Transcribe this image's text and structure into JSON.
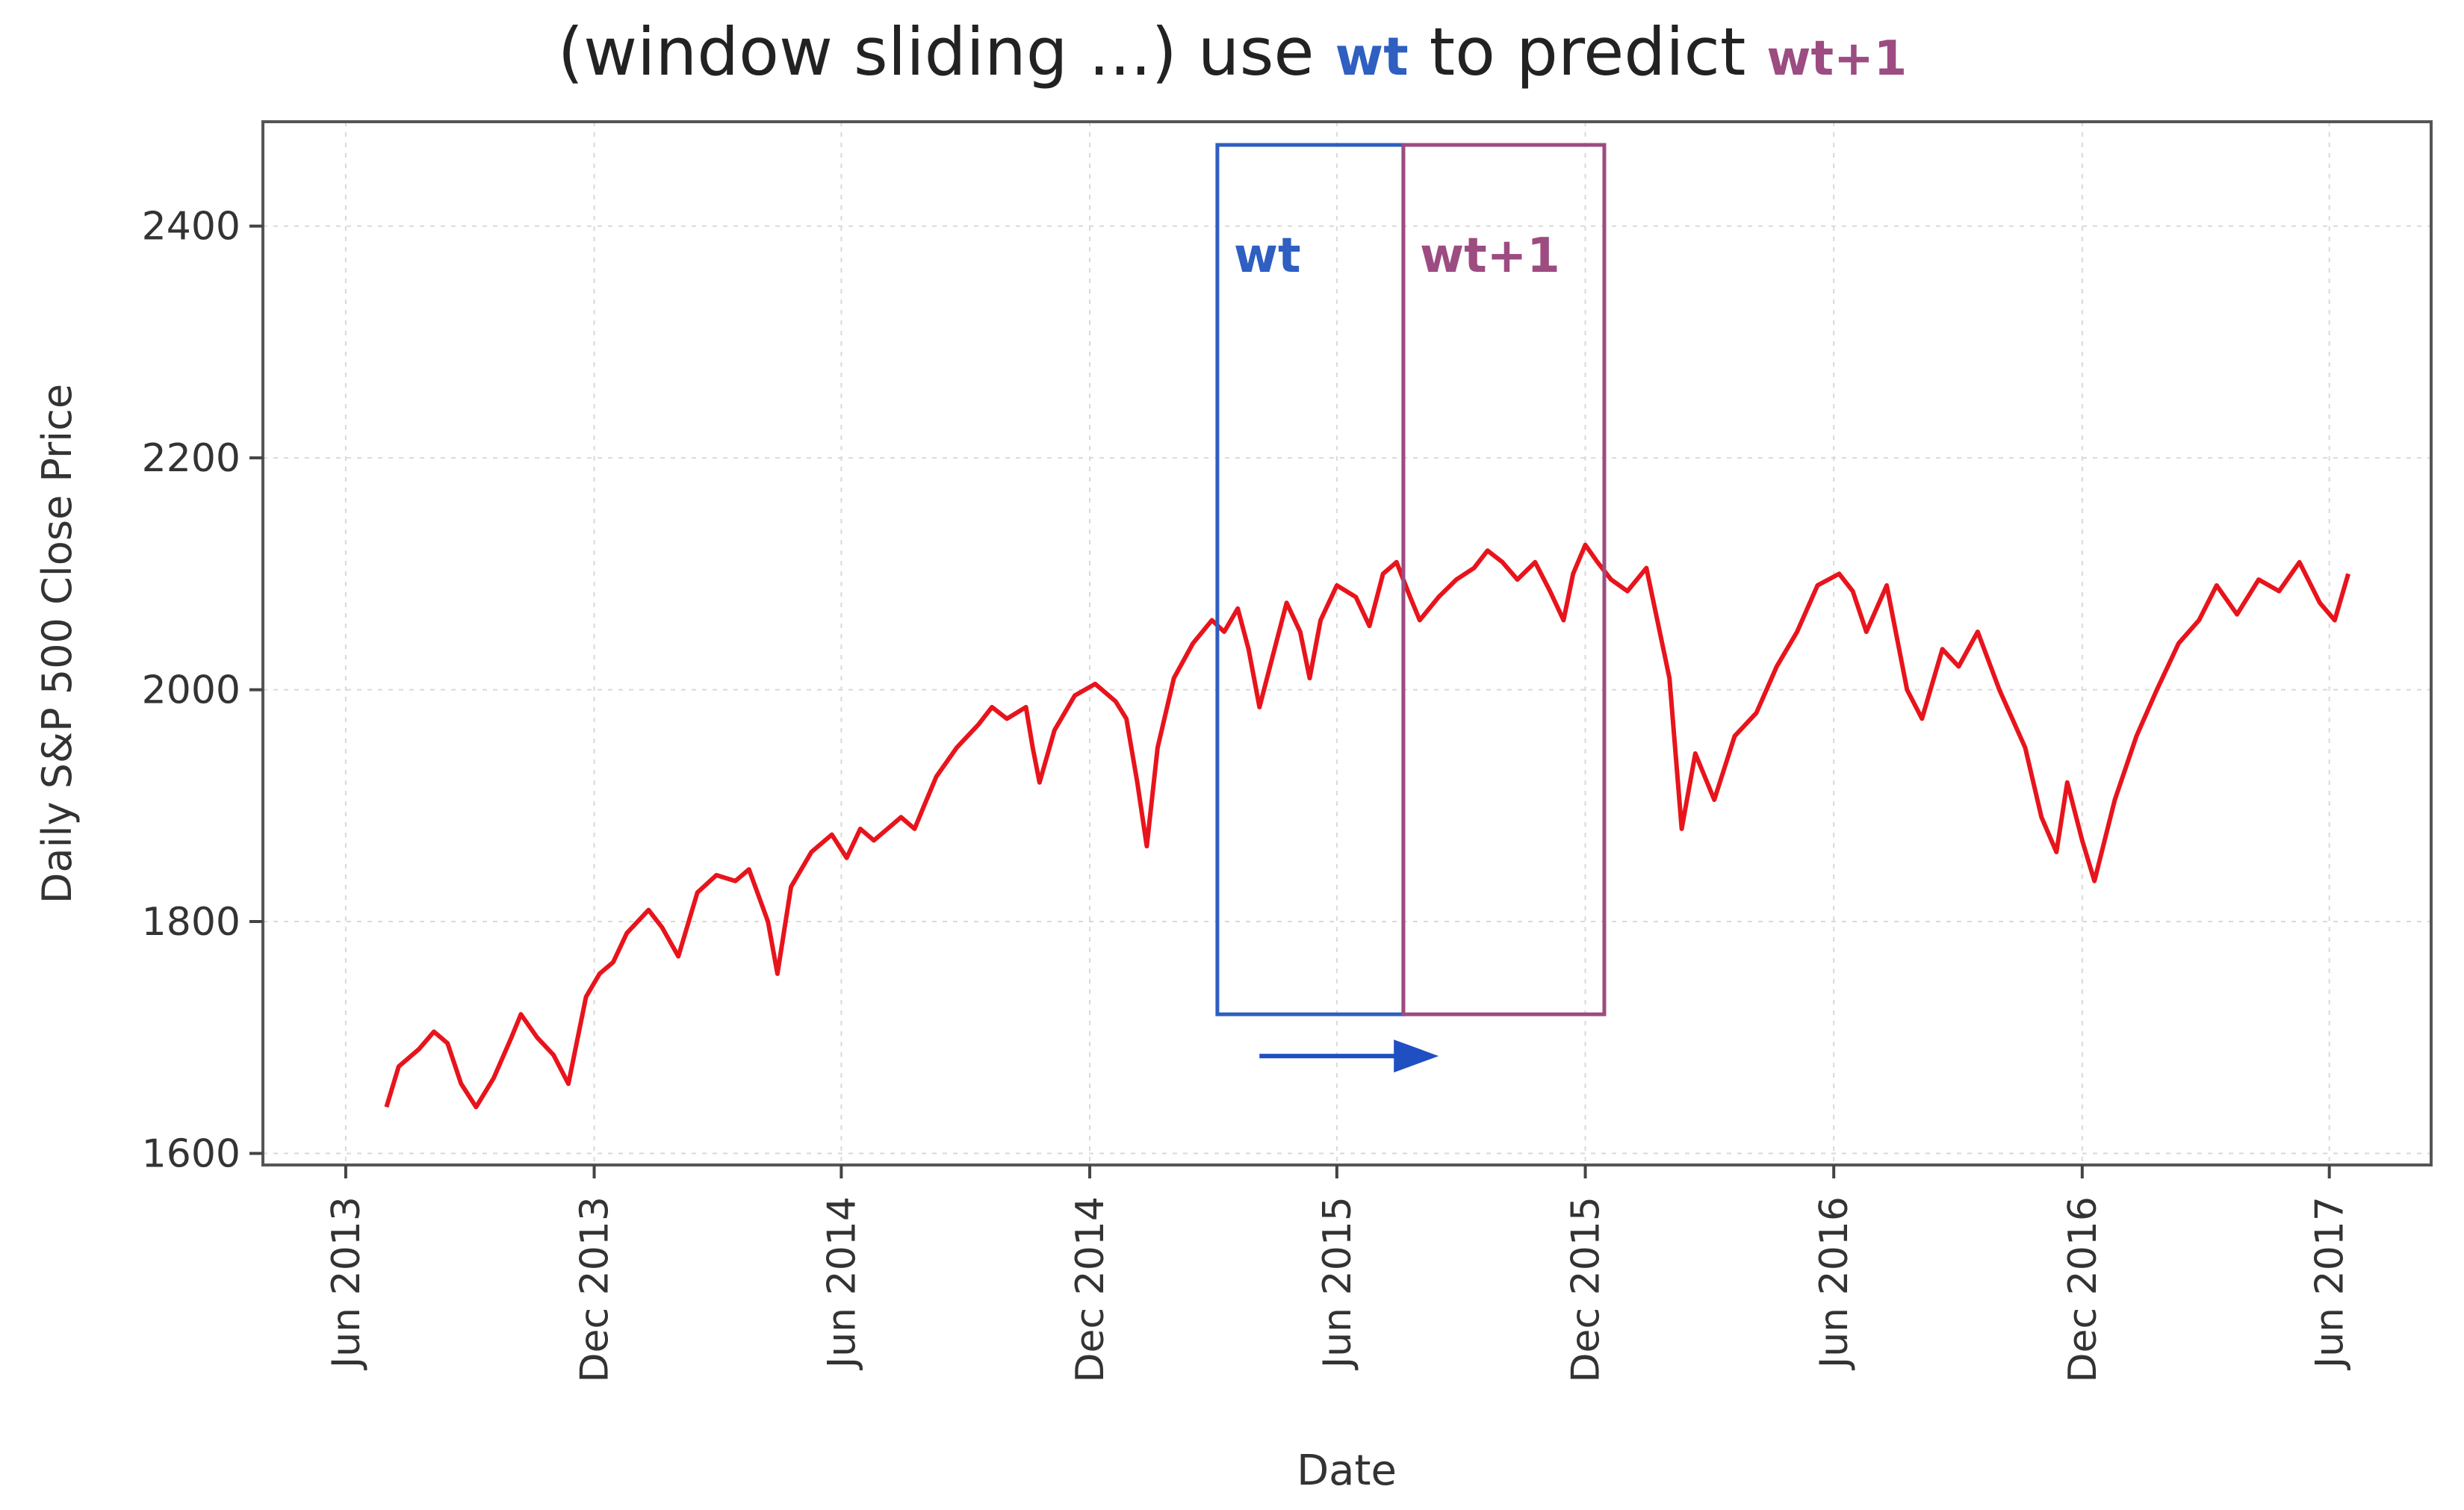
{
  "chart_data": {
    "type": "line",
    "title": {
      "prefix": "(window sliding ...) use ",
      "w_t": "wt",
      "middle": " to predict ",
      "w_t1": "wt+1"
    },
    "xlabel": "Date",
    "ylabel": "Daily S&P 500 Close Price",
    "x_ticks": [
      "Jun 2013",
      "Dec 2013",
      "Jun 2014",
      "Dec 2014",
      "Jun 2015",
      "Dec 2015",
      "Jun 2016",
      "Dec 2016",
      "Jun 2017"
    ],
    "y_ticks": [
      1600,
      1800,
      2000,
      2200,
      2400
    ],
    "ylim": [
      1590,
      2490
    ],
    "xlim": [
      "2013-04-01",
      "2017-08-15"
    ],
    "grid": true,
    "series": [
      {
        "color": "#e8141c",
        "points": [
          [
            "2013-07-01",
            1640
          ],
          [
            "2013-07-10",
            1675
          ],
          [
            "2013-07-25",
            1690
          ],
          [
            "2013-08-05",
            1705
          ],
          [
            "2013-08-15",
            1695
          ],
          [
            "2013-08-25",
            1660
          ],
          [
            "2013-09-05",
            1640
          ],
          [
            "2013-09-18",
            1665
          ],
          [
            "2013-10-01",
            1700
          ],
          [
            "2013-10-08",
            1720
          ],
          [
            "2013-10-20",
            1700
          ],
          [
            "2013-11-01",
            1685
          ],
          [
            "2013-11-12",
            1660
          ],
          [
            "2013-11-25",
            1735
          ],
          [
            "2013-12-05",
            1755
          ],
          [
            "2013-12-15",
            1765
          ],
          [
            "2013-12-25",
            1790
          ],
          [
            "2014-01-10",
            1810
          ],
          [
            "2014-01-20",
            1795
          ],
          [
            "2014-02-01",
            1770
          ],
          [
            "2014-02-15",
            1825
          ],
          [
            "2014-03-01",
            1840
          ],
          [
            "2014-03-15",
            1835
          ],
          [
            "2014-03-25",
            1845
          ],
          [
            "2014-04-08",
            1800
          ],
          [
            "2014-04-15",
            1755
          ],
          [
            "2014-04-25",
            1830
          ],
          [
            "2014-05-10",
            1860
          ],
          [
            "2014-05-25",
            1875
          ],
          [
            "2014-06-05",
            1855
          ],
          [
            "2014-06-15",
            1880
          ],
          [
            "2014-06-25",
            1870
          ],
          [
            "2014-07-05",
            1880
          ],
          [
            "2014-07-15",
            1890
          ],
          [
            "2014-07-25",
            1880
          ],
          [
            "2014-08-01",
            1900
          ],
          [
            "2014-08-10",
            1925
          ],
          [
            "2014-08-25",
            1950
          ],
          [
            "2014-09-10",
            1970
          ],
          [
            "2014-09-20",
            1985
          ],
          [
            "2014-10-01",
            1975
          ],
          [
            "2014-10-15",
            1985
          ],
          [
            "2014-10-20",
            1950
          ],
          [
            "2014-10-25",
            1920
          ],
          [
            "2014-11-05",
            1965
          ],
          [
            "2014-11-20",
            1995
          ],
          [
            "2014-12-05",
            2005
          ],
          [
            "2014-12-20",
            1990
          ],
          [
            "2014-12-28",
            1975
          ],
          [
            "2015-01-05",
            1920
          ],
          [
            "2015-01-12",
            1865
          ],
          [
            "2015-01-20",
            1950
          ],
          [
            "2015-02-01",
            2010
          ],
          [
            "2015-02-15",
            2040
          ],
          [
            "2015-03-01",
            2060
          ],
          [
            "2015-03-10",
            2050
          ],
          [
            "2015-03-20",
            2070
          ],
          [
            "2015-03-28",
            2035
          ],
          [
            "2015-04-05",
            1985
          ],
          [
            "2015-04-15",
            2030
          ],
          [
            "2015-04-25",
            2075
          ],
          [
            "2015-05-05",
            2050
          ],
          [
            "2015-05-12",
            2010
          ],
          [
            "2015-05-20",
            2060
          ],
          [
            "2015-06-01",
            2090
          ],
          [
            "2015-06-15",
            2080
          ],
          [
            "2015-06-25",
            2055
          ],
          [
            "2015-07-05",
            2100
          ],
          [
            "2015-07-15",
            2110
          ],
          [
            "2015-07-25",
            2080
          ],
          [
            "2015-08-01",
            2060
          ],
          [
            "2015-08-15",
            2080
          ],
          [
            "2015-08-28",
            2095
          ],
          [
            "2015-09-10",
            2105
          ],
          [
            "2015-09-20",
            2120
          ],
          [
            "2015-10-01",
            2110
          ],
          [
            "2015-10-12",
            2095
          ],
          [
            "2015-10-25",
            2110
          ],
          [
            "2015-11-05",
            2085
          ],
          [
            "2015-11-15",
            2060
          ],
          [
            "2015-11-22",
            2100
          ],
          [
            "2015-12-01",
            2125
          ],
          [
            "2015-12-10",
            2110
          ],
          [
            "2015-12-20",
            2095
          ],
          [
            "2016-01-01",
            2085
          ],
          [
            "2016-01-15",
            2105
          ],
          [
            "2016-02-01",
            2010
          ],
          [
            "2016-02-10",
            1880
          ],
          [
            "2016-02-20",
            1945
          ],
          [
            "2016-03-05",
            1905
          ],
          [
            "2016-03-20",
            1960
          ],
          [
            "2016-04-05",
            1980
          ],
          [
            "2016-04-20",
            2020
          ],
          [
            "2016-05-05",
            2050
          ],
          [
            "2016-05-20",
            2090
          ],
          [
            "2016-06-05",
            2100
          ],
          [
            "2016-06-15",
            2085
          ],
          [
            "2016-06-25",
            2050
          ],
          [
            "2016-07-10",
            2090
          ],
          [
            "2016-07-25",
            2000
          ],
          [
            "2016-08-05",
            1975
          ],
          [
            "2016-08-20",
            2035
          ],
          [
            "2016-09-01",
            2020
          ],
          [
            "2016-09-15",
            2050
          ],
          [
            "2016-10-01",
            2000
          ],
          [
            "2016-10-20",
            1950
          ],
          [
            "2016-11-01",
            1890
          ],
          [
            "2016-11-12",
            1860
          ],
          [
            "2016-11-20",
            1920
          ],
          [
            "2016-12-01",
            1870
          ],
          [
            "2016-12-10",
            1835
          ],
          [
            "2016-12-25",
            1905
          ],
          [
            "2017-01-10",
            1960
          ],
          [
            "2017-01-25",
            2000
          ],
          [
            "2017-02-10",
            2040
          ],
          [
            "2017-02-25",
            2060
          ],
          [
            "2017-03-10",
            2090
          ],
          [
            "2017-03-25",
            2065
          ],
          [
            "2017-04-10",
            2095
          ],
          [
            "2017-04-25",
            2085
          ],
          [
            "2017-05-10",
            2110
          ],
          [
            "2017-05-25",
            2075
          ],
          [
            "2017-06-05",
            2060
          ],
          [
            "2017-06-15",
            2100
          ]
        ]
      }
    ],
    "windows": [
      {
        "label": "wt",
        "start": "2015-03-05",
        "end": "2015-07-20",
        "y_bottom": 1720,
        "y_top": 2470,
        "color": "#2e5fc1"
      },
      {
        "label": "wt+1",
        "start": "2015-07-20",
        "end": "2015-12-15",
        "y_bottom": 1720,
        "y_top": 2470,
        "color": "#9c4c80"
      }
    ],
    "arrow": {
      "from": "2015-04-05",
      "to": "2015-08-15",
      "y": 1684,
      "color": "#1f4fc1"
    }
  }
}
